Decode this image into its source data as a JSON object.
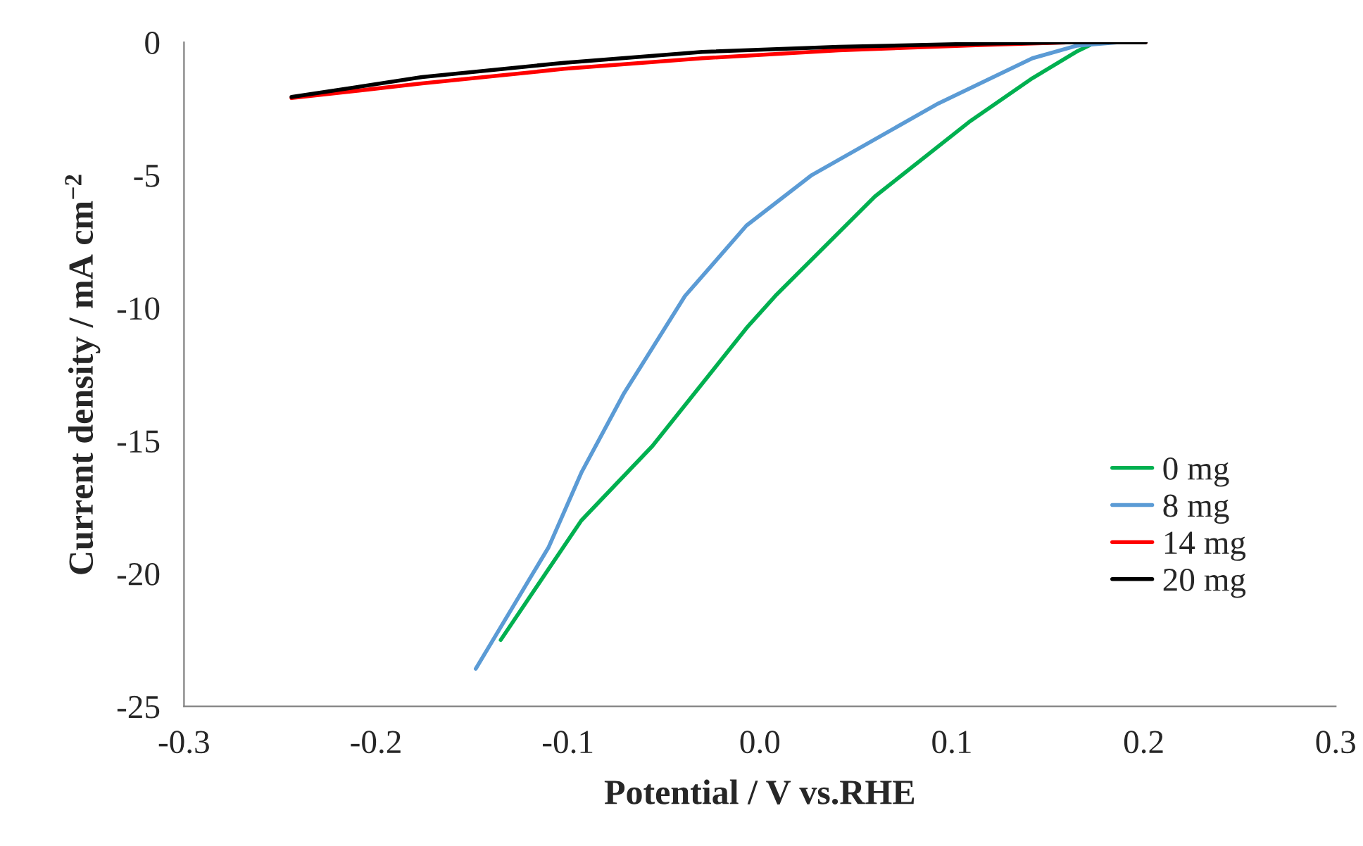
{
  "chart_data": {
    "type": "line",
    "xlabel": "Potential / V vs.RHE",
    "ylabel": "Current density / mA cm$^{−2}$",
    "xlim": [
      -0.3,
      0.3
    ],
    "xticks": [
      -0.3,
      -0.2,
      -0.1,
      {
        "value": 0,
        "label": "0.0"
      },
      0.1,
      0.2,
      0.3
    ],
    "ylim": [
      -25,
      0
    ],
    "yticks": [
      -25,
      -20,
      -15,
      -10,
      -5,
      0
    ],
    "grid": false,
    "legend": "right",
    "marker": "none",
    "line_style": "solid",
    "series": [
      {
        "name": "0 mg",
        "color": "#00b050",
        "x": [
          -0.135,
          -0.093,
          -0.056,
          -0.007,
          0.008,
          0.06,
          0.109,
          0.142,
          0.165,
          0.175
        ],
        "values": [
          -22.5,
          -18.0,
          -15.2,
          -10.76,
          -9.55,
          -5.8,
          -3.0,
          -1.35,
          -0.35,
          0
        ]
      },
      {
        "name": "8 mg",
        "color": "#5b9bd5",
        "x": [
          -0.148,
          -0.11,
          -0.093,
          -0.071,
          -0.039,
          -0.007,
          0.027,
          0.093,
          0.142,
          0.165,
          0.187
        ],
        "values": [
          -23.58,
          -19.0,
          -16.2,
          -13.24,
          -9.55,
          -6.9,
          -5.0,
          -2.3,
          -0.6,
          -0.13,
          0
        ]
      },
      {
        "name": "14 mg",
        "color": "#ff0000",
        "x": [
          -0.244,
          -0.176,
          -0.102,
          -0.03,
          0.041,
          0.115,
          0.16,
          0.201
        ],
        "values": [
          -2.1,
          -1.55,
          -1.0,
          -0.6,
          -0.3,
          -0.1,
          0,
          0
        ]
      },
      {
        "name": "20 mg",
        "color": "#000000",
        "x": [
          -0.244,
          -0.176,
          -0.102,
          -0.03,
          0.041,
          0.115,
          0.16,
          0.201
        ],
        "values": [
          -2.06,
          -1.31,
          -0.77,
          -0.36,
          -0.17,
          -0.05,
          0,
          0
        ]
      }
    ]
  }
}
